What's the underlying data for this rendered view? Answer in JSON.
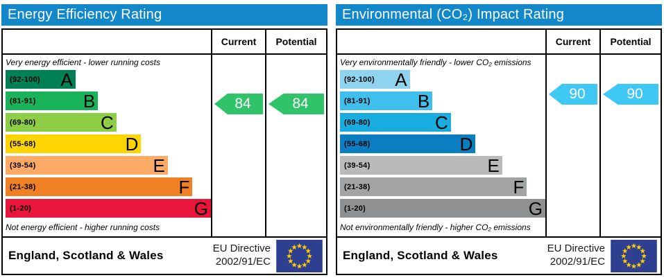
{
  "eu_flag": {
    "background": "#2e3f92",
    "stars": "#ffcc00"
  },
  "charts": [
    {
      "title": "Energy Efficiency Rating",
      "title_bg": "#1287c9",
      "columns": {
        "current": "Current",
        "potential": "Potential"
      },
      "top_label": "Very energy efficient - lower running costs",
      "bottom_label": "Not energy efficient - higher running costs",
      "bands": [
        {
          "range": "(92-100)",
          "letter": "A",
          "min": 92,
          "max": 100,
          "color": "#008054",
          "width_pct": 34
        },
        {
          "range": "(81-91)",
          "letter": "B",
          "min": 81,
          "max": 91,
          "color": "#19b459",
          "width_pct": 45
        },
        {
          "range": "(69-80)",
          "letter": "C",
          "min": 69,
          "max": 80,
          "color": "#8dce46",
          "width_pct": 54
        },
        {
          "range": "(55-68)",
          "letter": "D",
          "min": 55,
          "max": 68,
          "color": "#ffd500",
          "width_pct": 66
        },
        {
          "range": "(39-54)",
          "letter": "E",
          "min": 39,
          "max": 54,
          "color": "#fcaa65",
          "width_pct": 79
        },
        {
          "range": "(21-38)",
          "letter": "F",
          "min": 21,
          "max": 38,
          "color": "#ef8023",
          "width_pct": 91
        },
        {
          "range": "(1-20)",
          "letter": "G",
          "min": 1,
          "max": 20,
          "color": "#e9153b",
          "width_pct": 100
        }
      ],
      "current": {
        "value": "84",
        "color": "#31c36a"
      },
      "potential": {
        "value": "84",
        "color": "#31c36a"
      },
      "footer": {
        "region": "England, Scotland & Wales",
        "directive_line1": "EU Directive",
        "directive_line2": "2002/91/EC"
      }
    },
    {
      "title": "Environmental (CO₂) Impact Rating",
      "title_bg": "#1287c9",
      "columns": {
        "current": "Current",
        "potential": "Potential"
      },
      "top_label": "Very environmentally friendly - lower CO₂ emissions",
      "bottom_label": "Not environmentally friendly - higher CO₂ emissions",
      "bands": [
        {
          "range": "(92-100)",
          "letter": "A",
          "min": 92,
          "max": 100,
          "color": "#8ed4f0",
          "width_pct": 34
        },
        {
          "range": "(81-91)",
          "letter": "B",
          "min": 81,
          "max": 91,
          "color": "#3fbfec",
          "width_pct": 45
        },
        {
          "range": "(69-80)",
          "letter": "C",
          "min": 69,
          "max": 80,
          "color": "#19acde",
          "width_pct": 54
        },
        {
          "range": "(55-68)",
          "letter": "D",
          "min": 55,
          "max": 68,
          "color": "#0b7ec2",
          "width_pct": 66
        },
        {
          "range": "(39-54)",
          "letter": "E",
          "min": 39,
          "max": 54,
          "color": "#bababa",
          "width_pct": 79
        },
        {
          "range": "(21-38)",
          "letter": "F",
          "min": 21,
          "max": 38,
          "color": "#a2a3a5",
          "width_pct": 91
        },
        {
          "range": "(1-20)",
          "letter": "G",
          "min": 1,
          "max": 20,
          "color": "#8e9091",
          "width_pct": 100
        }
      ],
      "current": {
        "value": "90",
        "color": "#40c8f4"
      },
      "potential": {
        "value": "90",
        "color": "#40c8f4"
      },
      "footer": {
        "region": "England, Scotland & Wales",
        "directive_line1": "EU Directive",
        "directive_line2": "2002/91/EC"
      }
    }
  ],
  "chart_data": [
    {
      "type": "bar",
      "title": "Energy Efficiency Rating",
      "orientation": "horizontal",
      "categories": [
        "A (92-100)",
        "B (81-91)",
        "C (69-80)",
        "D (55-68)",
        "E (39-54)",
        "F (21-38)",
        "G (1-20)"
      ],
      "band_colors": [
        "#008054",
        "#19b459",
        "#8dce46",
        "#ffd500",
        "#fcaa65",
        "#ef8023",
        "#e9153b"
      ],
      "bar_lengths_pct": [
        34,
        45,
        54,
        66,
        79,
        91,
        100
      ],
      "series": [
        {
          "name": "Current",
          "values": [
            84
          ]
        },
        {
          "name": "Potential",
          "values": [
            84
          ]
        }
      ],
      "current_rating": 84,
      "current_band": "B",
      "potential_rating": 84,
      "potential_band": "B",
      "scale_range": [
        1,
        100
      ],
      "annotations": [
        "Very energy efficient - lower running costs",
        "Not energy efficient - higher running costs",
        "England, Scotland & Wales",
        "EU Directive 2002/91/EC"
      ]
    },
    {
      "type": "bar",
      "title": "Environmental (CO₂) Impact Rating",
      "orientation": "horizontal",
      "categories": [
        "A (92-100)",
        "B (81-91)",
        "C (69-80)",
        "D (55-68)",
        "E (39-54)",
        "F (21-38)",
        "G (1-20)"
      ],
      "band_colors": [
        "#8ed4f0",
        "#3fbfec",
        "#19acde",
        "#0b7ec2",
        "#bababa",
        "#a2a3a5",
        "#8e9091"
      ],
      "bar_lengths_pct": [
        34,
        45,
        54,
        66,
        79,
        91,
        100
      ],
      "series": [
        {
          "name": "Current",
          "values": [
            90
          ]
        },
        {
          "name": "Potential",
          "values": [
            90
          ]
        }
      ],
      "current_rating": 90,
      "current_band": "B",
      "potential_rating": 90,
      "potential_band": "B",
      "scale_range": [
        1,
        100
      ],
      "annotations": [
        "Very environmentally friendly - lower CO₂ emissions",
        "Not environmentally friendly - higher CO₂ emissions",
        "England, Scotland & Wales",
        "EU Directive 2002/91/EC"
      ]
    }
  ]
}
